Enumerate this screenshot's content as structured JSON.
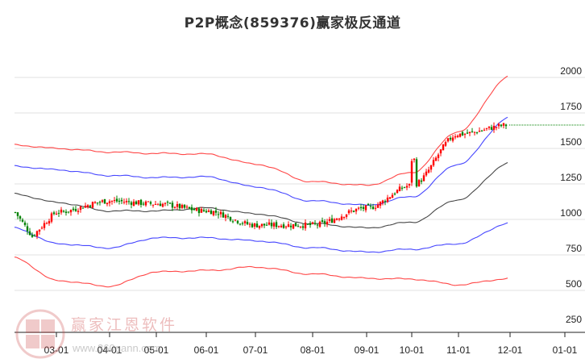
{
  "title": "P2P概念(859376)赢家极反通道",
  "watermark": {
    "brand": "赢家江恩软件",
    "url": "www.360gann.com",
    "logo_chars": [
      "江",
      "赢",
      "恩",
      "家"
    ]
  },
  "colors": {
    "up": "#ff0000",
    "down": "#008000",
    "outer_band": "#ff3333",
    "inner_band": "#3333ff",
    "mid_line": "#333333",
    "last_price_line": "#008000",
    "grid": "#e0e0e0"
  },
  "chart_data": {
    "type": "candlestick",
    "title": "P2P概念(859376)赢家极反通道",
    "xlabel": "",
    "ylabel": "",
    "ylim": [
      250,
      2000
    ],
    "y_ticks": [
      2000,
      1750,
      1500,
      1250,
      1000,
      750,
      500,
      250
    ],
    "x_ticks": [
      "03-01",
      "04-01",
      "05-01",
      "06-01",
      "07-01",
      "08-01",
      "09-01",
      "10-01",
      "11-01",
      "12-01",
      "01-01"
    ],
    "grid": true,
    "last_price": 1665,
    "series": [
      {
        "name": "outer_upper",
        "color": "#ff3333",
        "x": [
          "02-15",
          "03-01",
          "04-01",
          "05-01",
          "06-01",
          "07-01",
          "08-01",
          "09-01",
          "10-01",
          "11-01",
          "12-01"
        ],
        "values": [
          1525,
          1500,
          1475,
          1465,
          1460,
          1390,
          1265,
          1240,
          1330,
          1620,
          2010
        ]
      },
      {
        "name": "inner_upper",
        "color": "#3333ff",
        "x": [
          "02-15",
          "03-01",
          "04-01",
          "05-01",
          "06-01",
          "07-01",
          "08-01",
          "09-01",
          "10-01",
          "11-01",
          "12-01"
        ],
        "values": [
          1375,
          1350,
          1310,
          1295,
          1300,
          1230,
          1130,
          1100,
          1160,
          1390,
          1720
        ]
      },
      {
        "name": "middle",
        "color": "#333333",
        "x": [
          "02-15",
          "03-01",
          "04-01",
          "05-01",
          "06-01",
          "07-01",
          "08-01",
          "09-01",
          "10-01",
          "11-01",
          "12-01"
        ],
        "values": [
          1180,
          1120,
          1060,
          1060,
          1080,
          1040,
          970,
          940,
          980,
          1140,
          1400
        ]
      },
      {
        "name": "inner_lower",
        "color": "#3333ff",
        "x": [
          "02-15",
          "03-01",
          "04-01",
          "05-01",
          "06-01",
          "07-01",
          "08-01",
          "09-01",
          "10-01",
          "11-01",
          "12-01"
        ],
        "values": [
          940,
          830,
          800,
          870,
          870,
          850,
          800,
          770,
          790,
          830,
          975
        ]
      },
      {
        "name": "outer_lower",
        "color": "#ff3333",
        "x": [
          "02-15",
          "03-01",
          "04-01",
          "05-01",
          "06-01",
          "07-01",
          "08-01",
          "09-01",
          "10-01",
          "11-01",
          "12-01"
        ],
        "values": [
          730,
          570,
          530,
          630,
          640,
          665,
          615,
          585,
          580,
          540,
          585
        ]
      },
      {
        "name": "close",
        "x": [
          "02-15",
          "03-01",
          "04-01",
          "05-01",
          "06-01",
          "07-01",
          "08-01",
          "09-01",
          "10-01",
          "11-01",
          "12-01"
        ],
        "values": [
          1050,
          1050,
          1130,
          1110,
          1060,
          960,
          960,
          1080,
          1240,
          1600,
          1665
        ]
      }
    ]
  }
}
